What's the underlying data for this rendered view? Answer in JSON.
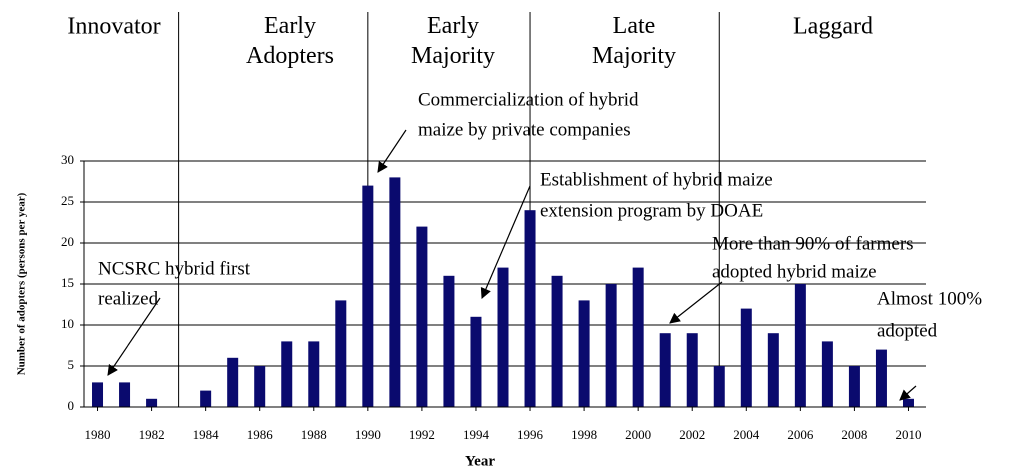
{
  "chart_data": {
    "type": "bar",
    "x": [
      1980,
      1981,
      1982,
      1983,
      1984,
      1985,
      1986,
      1987,
      1988,
      1989,
      1990,
      1991,
      1992,
      1993,
      1994,
      1995,
      1996,
      1997,
      1998,
      1999,
      2000,
      2001,
      2002,
      2003,
      2004,
      2005,
      2006,
      2007,
      2008,
      2009,
      2010
    ],
    "values": [
      3,
      3,
      1,
      0,
      2,
      6,
      5,
      8,
      8,
      13,
      27,
      28,
      22,
      16,
      11,
      17,
      24,
      16,
      13,
      15,
      17,
      9,
      9,
      5,
      12,
      9,
      15,
      8,
      5,
      7,
      1
    ],
    "color": "#0a0a6e",
    "xlim": [
      1979.5,
      2010.5
    ],
    "xticks": [
      1980,
      1982,
      1984,
      1986,
      1988,
      1990,
      1992,
      1994,
      1996,
      1998,
      2000,
      2002,
      2004,
      2006,
      2008,
      2010
    ],
    "ylim": [
      0,
      30
    ],
    "yticks": [
      0,
      5,
      10,
      15,
      20,
      25,
      30
    ],
    "grid": true,
    "xlabel": "Year",
    "ylabel": "Number of adopters (persons per year)",
    "phases": [
      "Innovator",
      "Early Adopters",
      "Early Majority",
      "Late Majority",
      "Laggard"
    ],
    "phase_boundaries": [
      1983,
      1990,
      1996,
      2003
    ],
    "annotations": [
      [
        "NCSRC hybrid first",
        "realized"
      ],
      [
        "Commercialization of hybrid",
        "maize by private companies"
      ],
      [
        "Establishment of hybrid maize",
        "extension program by DOAE"
      ],
      [
        "More than 90% of farmers",
        "adopted hybrid maize"
      ],
      [
        "Almost 100%",
        "adopted"
      ]
    ]
  }
}
